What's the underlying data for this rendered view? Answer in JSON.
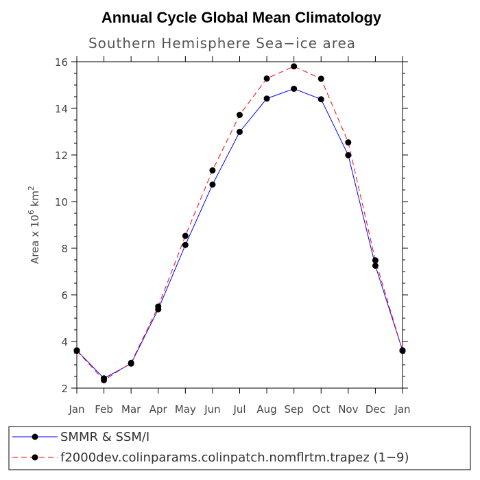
{
  "chart_data": {
    "type": "line",
    "title": "Annual Cycle Global Mean Climatology",
    "subtitle": "Southern Hemisphere Sea−ice area",
    "ylabel": {
      "prefix": "Area x 10",
      "exponent": "6",
      "unit": " km",
      "unit_exponent": "2"
    },
    "xlabel": "",
    "categories": [
      "Jan",
      "Feb",
      "Mar",
      "Apr",
      "May",
      "Jun",
      "Jul",
      "Aug",
      "Sep",
      "Oct",
      "Nov",
      "Dec",
      "Jan"
    ],
    "ylim": [
      2,
      16
    ],
    "yticks": [
      "2",
      "4",
      "6",
      "8",
      "10",
      "12",
      "14",
      "16"
    ],
    "series": [
      {
        "name": "SMMR & SSM/I",
        "color": "#0000ff",
        "dash": "solid",
        "values": [
          3.62,
          2.42,
          3.05,
          5.38,
          8.14,
          10.73,
          12.99,
          14.42,
          14.84,
          14.39,
          11.99,
          7.25,
          3.62
        ]
      },
      {
        "name": "f2000dev.colinparams.colinpatch.nomflrtm.trapez (1−9)",
        "color": "#ff0000",
        "dash": "dashed",
        "values": [
          3.6,
          2.34,
          3.08,
          5.5,
          8.53,
          11.34,
          13.72,
          15.28,
          15.8,
          15.27,
          12.54,
          7.48,
          3.6
        ]
      }
    ],
    "legend_position": "bottom"
  }
}
